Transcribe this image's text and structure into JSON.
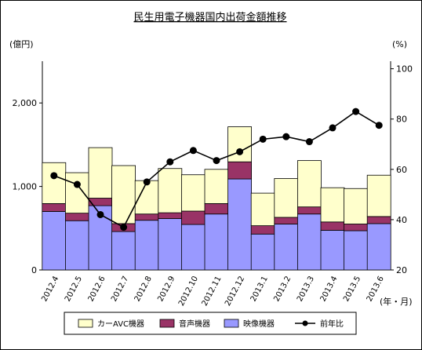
{
  "chart_data": {
    "type": "bar",
    "title": "民生用電子機器国内出荷金額推移",
    "y_left_unit": "(億円)",
    "y_right_unit": "(%)",
    "x_unit": "(年・月)",
    "categories": [
      "2012.4",
      "2012.5",
      "2012.6",
      "2012.7",
      "2012.8",
      "2012.9",
      "2012.10",
      "2012.11",
      "2012.12",
      "2013.1",
      "2013.2",
      "2013.3",
      "2013.4",
      "2013.5",
      "2013.6"
    ],
    "y_left_ticks": [
      "0",
      "1,000",
      "2,000"
    ],
    "y_right_ticks": [
      "20",
      "40",
      "60",
      "80",
      "100"
    ],
    "ylim_left": [
      0,
      2500
    ],
    "ylim_right": [
      20,
      103
    ],
    "series": [
      {
        "name": "映像機器",
        "color": "#9999ff",
        "values": [
          700,
          590,
          770,
          460,
          595,
          615,
          545,
          670,
          1090,
          430,
          550,
          670,
          475,
          470,
          555
        ]
      },
      {
        "name": "音声機器",
        "color": "#993366",
        "values": [
          95,
          90,
          90,
          95,
          75,
          70,
          160,
          125,
          205,
          100,
          80,
          85,
          100,
          80,
          85
        ]
      },
      {
        "name": "カーAVC機器",
        "color": "#ffffcc",
        "values": [
          490,
          485,
          605,
          695,
          400,
          530,
          435,
          410,
          420,
          390,
          465,
          555,
          410,
          425,
          495
        ]
      }
    ],
    "line_series": {
      "name": "前年比",
      "color": "#000000",
      "values": [
        57.5,
        54,
        42,
        37,
        55,
        63,
        67.5,
        63.5,
        67,
        72,
        73,
        71,
        76.5,
        83,
        77.5
      ]
    },
    "legend_order": [
      "カーAVC機器",
      "音声機器",
      "映像機器",
      "前年比"
    ],
    "legend_position": "bottom",
    "grid": false
  }
}
